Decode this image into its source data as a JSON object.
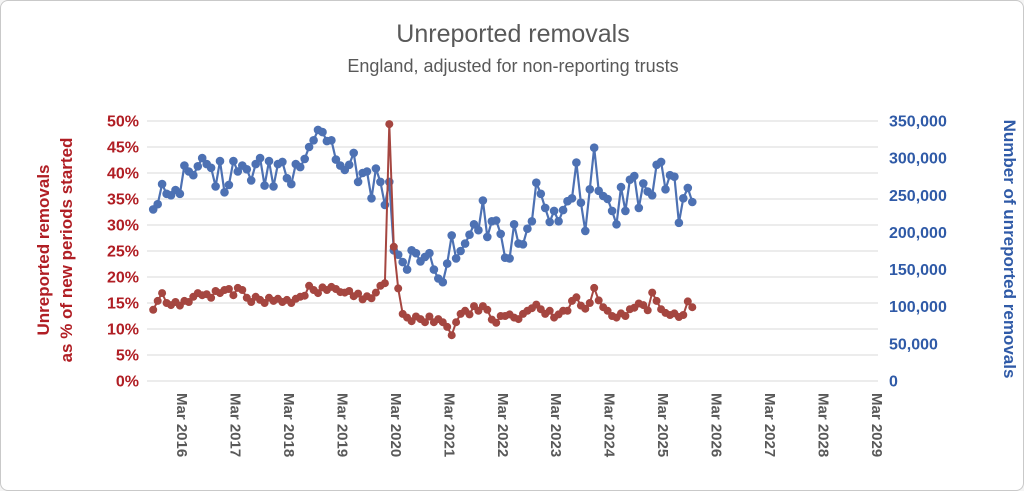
{
  "chart_data": {
    "type": "line",
    "title": "Unreported removals",
    "subtitle": "England, adjusted for non-reporting trusts",
    "grid": true,
    "legend": false,
    "colors": {
      "red_series": "#A54640",
      "blue_series": "#4D71B3",
      "red_axis_text": "#B01E24",
      "blue_axis_text": "#2F5AA7",
      "gridline": "#D9D9D9",
      "title_text": "#595959"
    },
    "left_axis": {
      "title_line1": "Unreported removals",
      "title_line2": "as % of new periods started",
      "min": 0,
      "max": 50,
      "step": 5,
      "tick_labels_top_to_bottom": [
        "50%",
        "45%",
        "40%",
        "35%",
        "30%",
        "25%",
        "20%",
        "15%",
        "10%",
        "5%",
        "0%"
      ]
    },
    "right_axis": {
      "title": "Number of unreported removals",
      "min": 0,
      "max": 350000,
      "step": 50000,
      "tick_labels_top_to_bottom": [
        "350,000",
        "300,000",
        "250,000",
        "200,000",
        "150,000",
        "100,000",
        "50,000",
        "0"
      ]
    },
    "x_axis": {
      "tick_labels": [
        "Mar 2016",
        "Mar 2017",
        "Mar 2018",
        "Mar 2019",
        "Mar 2020",
        "Mar 2021",
        "Mar 2022",
        "Mar 2023",
        "Mar 2024",
        "Mar 2025",
        "Mar 2026",
        "Mar 2027",
        "Mar 2028",
        "Mar 2029"
      ]
    },
    "series": [
      {
        "name": "Number of unreported removals",
        "axis": "right",
        "start_month": "Nov 2015",
        "interval": "monthly",
        "values": [
          231000,
          238000,
          265000,
          252000,
          250000,
          257000,
          252000,
          290000,
          282000,
          277000,
          289000,
          300000,
          292000,
          287000,
          262000,
          296000,
          254000,
          264000,
          296000,
          282000,
          290000,
          285000,
          270000,
          292000,
          300000,
          263000,
          296000,
          262000,
          292000,
          295000,
          273000,
          265000,
          292000,
          288000,
          299000,
          315000,
          324000,
          338000,
          335000,
          323000,
          324000,
          298000,
          290000,
          284000,
          291000,
          307000,
          268000,
          280000,
          282000,
          246000,
          286000,
          268000,
          237000,
          268000,
          176000,
          170000,
          160000,
          150000,
          176000,
          172000,
          161000,
          167000,
          172000,
          150000,
          138000,
          133000,
          158000,
          196000,
          165000,
          175000,
          185000,
          197000,
          211000,
          203000,
          243000,
          194000,
          215000,
          216000,
          198000,
          166000,
          165000,
          211000,
          185000,
          184000,
          205000,
          215000,
          267000,
          252000,
          233000,
          214000,
          229000,
          215000,
          230000,
          242000,
          246000,
          294000,
          240000,
          202000,
          258000,
          314000,
          256000,
          249000,
          245000,
          229000,
          211000,
          261000,
          229000,
          271000,
          276000,
          233000,
          266000,
          255000,
          250000,
          291000,
          295000,
          258000,
          277000,
          275000,
          213000,
          246000,
          260000,
          241000
        ]
      },
      {
        "name": "Unreported removals as % of new periods started",
        "axis": "left",
        "start_month": "Nov 2015",
        "interval": "monthly",
        "values": [
          13.7,
          15.4,
          16.9,
          15.0,
          14.6,
          15.2,
          14.5,
          15.4,
          15.2,
          16.2,
          16.9,
          16.5,
          16.7,
          16.0,
          17.3,
          16.9,
          17.5,
          17.7,
          16.5,
          17.9,
          17.5,
          16.0,
          15.2,
          16.2,
          15.6,
          15.0,
          16.0,
          15.4,
          15.8,
          15.2,
          15.6,
          15.0,
          15.8,
          16.2,
          16.4,
          18.3,
          17.5,
          16.9,
          18.0,
          17.5,
          18.1,
          17.7,
          17.1,
          17.0,
          17.3,
          16.3,
          16.8,
          15.7,
          16.3,
          15.9,
          17.0,
          18.3,
          18.8,
          49.4,
          25.8,
          17.8,
          12.9,
          12.2,
          11.5,
          12.4,
          11.9,
          11.3,
          12.4,
          11.3,
          11.9,
          11.3,
          10.4,
          8.8,
          11.3,
          12.9,
          13.5,
          12.8,
          14.4,
          13.5,
          14.4,
          13.7,
          11.8,
          11.2,
          12.5,
          12.5,
          12.8,
          12.2,
          11.9,
          12.9,
          13.5,
          14.0,
          14.7,
          13.8,
          12.9,
          13.5,
          12.2,
          12.8,
          13.5,
          13.5,
          15.4,
          16.1,
          14.5,
          13.9,
          15.0,
          17.9,
          15.5,
          14.2,
          13.5,
          12.5,
          12.2,
          13.0,
          12.5,
          13.8,
          14.1,
          14.9,
          14.6,
          13.6,
          17.0,
          15.4,
          13.8,
          13.1,
          12.7,
          13.0,
          12.3,
          12.7,
          15.3,
          14.2
        ]
      }
    ]
  }
}
